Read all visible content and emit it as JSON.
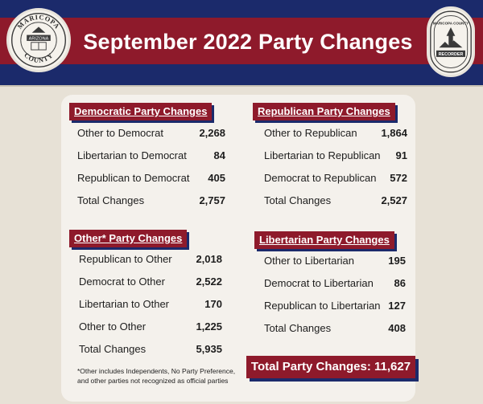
{
  "header": {
    "title": "September 2022 Party Changes",
    "left_seal": {
      "top": "MARICOPA",
      "middle": "ARIZONA",
      "bottom": "COUNTY"
    },
    "right_seal": {
      "top": "MARICOPA COUNTY",
      "bottom": "RECORDER"
    }
  },
  "colors": {
    "navy": "#1b2a6b",
    "red": "#8e1a2b",
    "card": "#f4f1ec"
  },
  "democratic": {
    "title": "Democratic Party Changes",
    "rows": [
      {
        "label": "Other to Democrat",
        "value": "2,268"
      },
      {
        "label": "Libertarian to Democrat",
        "value": "84"
      },
      {
        "label": "Republican to Democrat",
        "value": "405"
      },
      {
        "label": "Total Changes",
        "value": "2,757"
      }
    ]
  },
  "republican": {
    "title": "Republican Party Changes",
    "rows": [
      {
        "label": "Other to Republican",
        "value": "1,864"
      },
      {
        "label": "Libertarian to Republican",
        "value": "91"
      },
      {
        "label": "Democrat to Republican",
        "value": "572"
      },
      {
        "label": "Total Changes",
        "value": "2,527"
      }
    ]
  },
  "other": {
    "title": "Other* Party Changes",
    "rows": [
      {
        "label": "Republican to Other",
        "value": "2,018"
      },
      {
        "label": "Democrat to Other",
        "value": "2,522"
      },
      {
        "label": "Libertarian to Other",
        "value": "170"
      },
      {
        "label": "Other to Other",
        "value": "1,225"
      },
      {
        "label": "Total Changes",
        "value": "5,935"
      }
    ]
  },
  "libertarian": {
    "title": "Libertarian Party Changes",
    "rows": [
      {
        "label": "Other to Libertarian",
        "value": "195"
      },
      {
        "label": "Democrat to Libertarian",
        "value": "86"
      },
      {
        "label": "Republican to Libertarian",
        "value": "127"
      },
      {
        "label": "Total Changes",
        "value": "408"
      }
    ]
  },
  "footnote_line1": "*Other includes Independents, No Party Preference,",
  "footnote_line2": "and other parties not recognized as official parties",
  "total": "Total Party Changes: 11,627"
}
